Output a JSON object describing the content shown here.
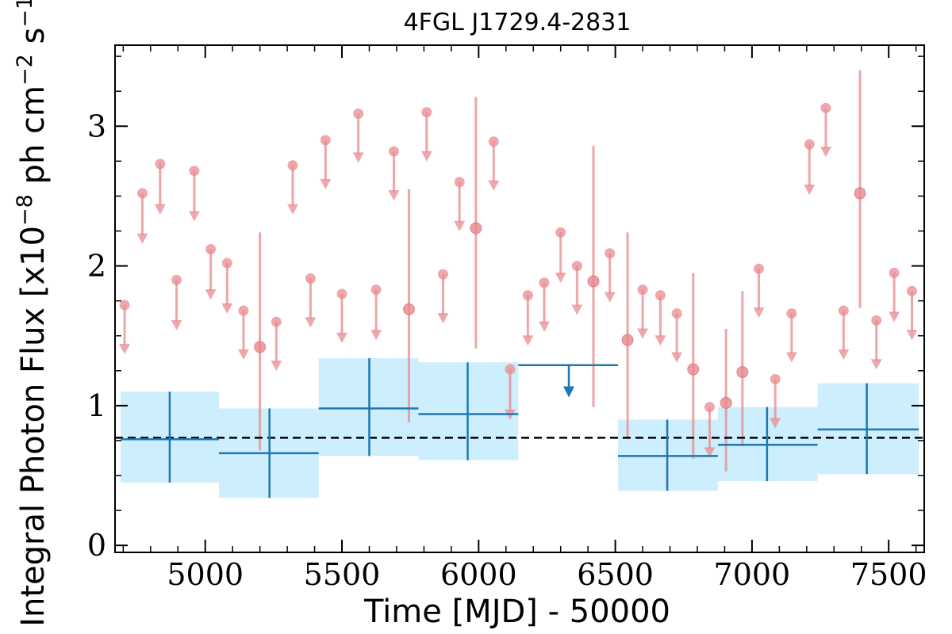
{
  "chart_data": {
    "type": "scatter",
    "title": "4FGL J1729.4-2831",
    "xlabel": "Time [MJD] - 50000",
    "ylabel": "Integral Photon Flux [x10",
    "ylabel_exp1": "−8",
    "ylabel_mid": " ph cm",
    "ylabel_exp2": "−2",
    "ylabel_s": " s",
    "ylabel_exp3": "−1",
    "ylabel_end": "]",
    "xlim": [
      4670,
      7630
    ],
    "ylim": [
      -0.05,
      3.58
    ],
    "x_ticks": [
      5000,
      5500,
      6000,
      6500,
      7000,
      7500
    ],
    "x_tick_labels": [
      "5000",
      "5500",
      "6000",
      "6500",
      "7000",
      "7500"
    ],
    "y_ticks": [
      0,
      1,
      2,
      3
    ],
    "y_tick_labels": [
      "0",
      "1",
      "2",
      "3"
    ],
    "reference_level": 0.77,
    "colors": {
      "short_bins": "#e8898d",
      "long_bins": "#1f77b4",
      "band": "#cdeefc",
      "reference": "#000000"
    },
    "series": [
      {
        "kind": "upper_limits",
        "x": [
          4705,
          4770,
          4835,
          4895,
          4960,
          5020,
          5080,
          5140,
          5260,
          5320,
          5385,
          5440,
          5500,
          5560,
          5625,
          5690,
          5810,
          5870,
          5930,
          6055,
          6115,
          6180,
          6240,
          6300,
          6360,
          6480,
          6600,
          6665,
          6725,
          6845,
          7025,
          7085,
          7145,
          7210,
          7270,
          7335,
          7455,
          7520,
          7585
        ],
        "y": [
          1.72,
          2.52,
          2.73,
          1.9,
          2.68,
          2.12,
          2.02,
          1.68,
          1.6,
          2.72,
          1.91,
          2.9,
          1.8,
          3.09,
          1.83,
          2.82,
          3.1,
          1.94,
          2.6,
          2.89,
          1.26,
          1.79,
          1.88,
          2.24,
          2.0,
          2.09,
          1.83,
          1.79,
          1.66,
          0.99,
          1.98,
          1.19,
          1.66,
          2.87,
          3.13,
          1.68,
          1.61,
          1.95,
          1.82
        ],
        "y_limit_tip": [
          1.38,
          2.17,
          2.38,
          1.55,
          2.33,
          1.77,
          1.67,
          1.34,
          1.26,
          2.38,
          1.57,
          2.56,
          1.46,
          2.75,
          1.48,
          2.48,
          2.76,
          1.6,
          2.26,
          2.55,
          0.91,
          1.44,
          1.54,
          1.89,
          1.66,
          1.75,
          1.49,
          1.44,
          1.32,
          0.64,
          1.64,
          0.85,
          1.32,
          2.52,
          2.79,
          1.34,
          1.27,
          1.61,
          1.48
        ]
      },
      {
        "kind": "detections",
        "x": [
          5200,
          5745,
          5990,
          6420,
          6545,
          6785,
          6905,
          6965,
          7395
        ],
        "y": [
          1.42,
          1.69,
          2.27,
          1.89,
          1.47,
          1.26,
          1.02,
          1.24,
          2.52
        ],
        "y_low": [
          0.68,
          0.88,
          1.41,
          0.99,
          0.76,
          0.62,
          0.53,
          0.71,
          1.7
        ],
        "y_high": [
          2.24,
          2.55,
          3.21,
          2.86,
          2.24,
          1.95,
          1.55,
          1.82,
          3.4
        ]
      },
      {
        "kind": "long_bins",
        "x": [
          4870,
          5235,
          5600,
          5960,
          6690,
          7055,
          7420
        ],
        "x_low": [
          4690,
          5050,
          5415,
          5780,
          6510,
          6875,
          7240
        ],
        "x_high": [
          5050,
          5415,
          5780,
          6145,
          6875,
          7240,
          7610
        ],
        "y": [
          0.76,
          0.66,
          0.98,
          0.94,
          0.64,
          0.72,
          0.83
        ],
        "y_low": [
          0.45,
          0.34,
          0.64,
          0.61,
          0.39,
          0.46,
          0.51
        ],
        "y_high": [
          1.1,
          0.98,
          1.34,
          1.31,
          0.9,
          0.99,
          1.16
        ]
      },
      {
        "kind": "long_bin_upper_limit",
        "x": [
          6330
        ],
        "x_low": [
          6145
        ],
        "x_high": [
          6510
        ],
        "y": [
          1.29
        ],
        "y_limit_tip": [
          1.07
        ]
      }
    ]
  }
}
